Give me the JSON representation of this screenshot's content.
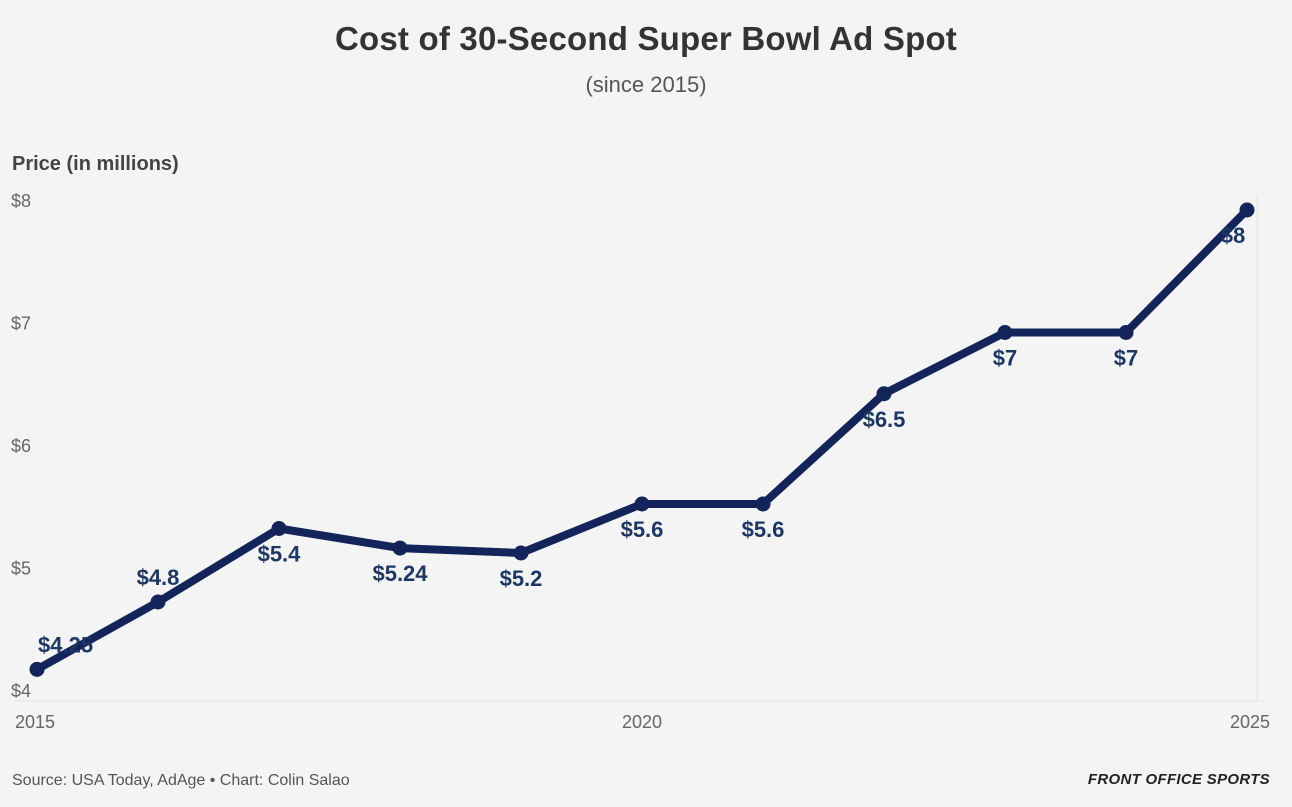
{
  "title": "Cost of 30-Second Super Bowl Ad Spot",
  "subtitle": "(since 2015)",
  "ylabel": "Price (in millions)",
  "source": "Source: USA Today, AdAge • Chart: Colin Salao",
  "brand": "FRONT OFFICE SPORTS",
  "colors": {
    "line": "#13245a",
    "label": "#1c3763",
    "background": "#f4f4f5"
  },
  "chart_data": {
    "type": "line",
    "title": "Cost of 30-Second Super Bowl Ad Spot",
    "subtitle": "(since 2015)",
    "xlabel": "",
    "ylabel": "Price (in millions)",
    "x": [
      2015,
      2016,
      2017,
      2018,
      2019,
      2020,
      2021,
      2022,
      2023,
      2024,
      2025
    ],
    "values": [
      4.25,
      4.8,
      5.4,
      5.24,
      5.2,
      5.6,
      5.6,
      6.5,
      7,
      7,
      8
    ],
    "data_labels": [
      "$4.25",
      "$4.8",
      "$5.4",
      "$5.24",
      "$5.2",
      "$5.6",
      "$5.6",
      "$6.5",
      "$7",
      "$7",
      "$8"
    ],
    "label_position": [
      "above",
      "above",
      "below",
      "below",
      "below",
      "below",
      "below",
      "below",
      "below",
      "below",
      "below"
    ],
    "xlim": [
      2015,
      2025
    ],
    "ylim": [
      4,
      8
    ],
    "x_ticks": [
      2015,
      2020,
      2025
    ],
    "x_tick_labels": [
      "2015",
      "2020",
      "2025"
    ],
    "y_ticks": [
      4,
      5,
      6,
      7,
      8
    ],
    "y_tick_labels": [
      "$4",
      "$5",
      "$6",
      "$7",
      "$8"
    ],
    "grid": false,
    "legend": "none"
  }
}
